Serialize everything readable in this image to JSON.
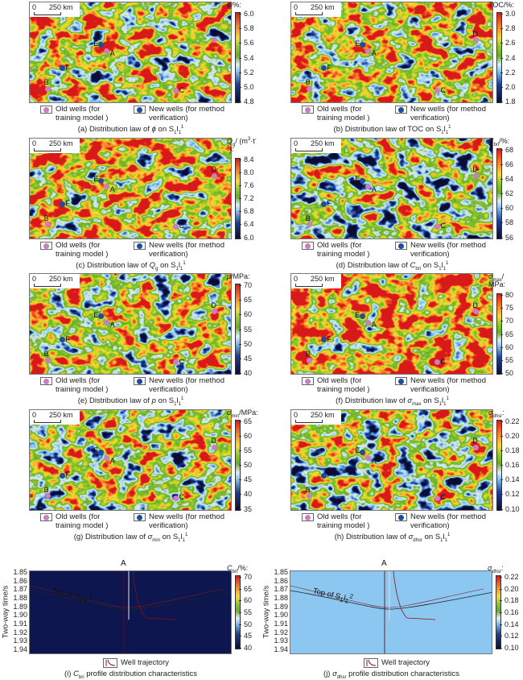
{
  "scale_bar": {
    "zero": "0",
    "distance": "250 km"
  },
  "legend": {
    "old_wells": [
      "Old wells (for",
      "training model )"
    ],
    "new_wells": [
      "New wells (for method",
      "verification)"
    ],
    "well_trajectory": "Well trajectory"
  },
  "colors": {
    "old_well": "#c77fbf",
    "new_well": "#1d4e9c"
  },
  "wells": [
    {
      "label": "A",
      "type": "old"
    },
    {
      "label": "B",
      "type": "old"
    },
    {
      "label": "C",
      "type": "old"
    },
    {
      "label": "D",
      "type": "old"
    },
    {
      "label": "E",
      "type": "new"
    },
    {
      "label": "F",
      "type": "new"
    }
  ],
  "map_panels": [
    {
      "cb_title": [
        {
          "t": "ϕ",
          "i": 1
        },
        {
          "t": "/%:"
        }
      ],
      "ticks": [
        "6.0",
        "5.8",
        "5.6",
        "5.4",
        "5.2",
        "5.0",
        "4.8"
      ],
      "caption": [
        {
          "t": "(a) Distribution law of "
        },
        {
          "t": "ϕ",
          "i": 1
        },
        {
          "t": " on S"
        },
        {
          "t": "1",
          "sub": 1
        },
        {
          "t": "l"
        },
        {
          "t": "1",
          "sub": 1
        },
        {
          "t": "1",
          "sup": 1
        }
      ]
    },
    {
      "cb_title": [
        {
          "t": "TOC/%:"
        }
      ],
      "ticks": [
        "3.0",
        "2.8",
        "2.6",
        "2.4",
        "2.2",
        "2.0",
        "1.8"
      ],
      "caption": [
        {
          "t": "(b) Distribution law of TOC on S"
        },
        {
          "t": "1",
          "sub": 1
        },
        {
          "t": "l"
        },
        {
          "t": "1",
          "sub": 1
        },
        {
          "t": "1",
          "sup": 1
        }
      ]
    },
    {
      "cb_title": [
        {
          "t": "Q",
          "i": 1
        },
        {
          "t": "g",
          "sub": 1
        },
        {
          "t": "/ (m"
        },
        {
          "t": "3",
          "sup": 1
        },
        {
          "t": "·t"
        },
        {
          "t": "-1",
          "sup": 1
        },
        {
          "t": "):"
        }
      ],
      "ticks": [
        "8.4",
        "8.0",
        "7.6",
        "7.2",
        "6.8",
        "6.4",
        "6.0"
      ],
      "caption": [
        {
          "t": "(c) Distribution law of "
        },
        {
          "t": "Q",
          "i": 1
        },
        {
          "t": "g",
          "sub": 1
        },
        {
          "t": " on S"
        },
        {
          "t": "1",
          "sub": 1
        },
        {
          "t": "l"
        },
        {
          "t": "1",
          "sub": 1
        },
        {
          "t": "1",
          "sup": 1
        }
      ]
    },
    {
      "cb_title": [
        {
          "t": "C",
          "i": 1
        },
        {
          "t": "bri",
          "sub": 1
        },
        {
          "t": "/%:"
        }
      ],
      "ticks": [
        "68",
        "66",
        "64",
        "62",
        "60",
        "58",
        "56"
      ],
      "caption": [
        {
          "t": "(d) Distribution law of "
        },
        {
          "t": "C",
          "i": 1
        },
        {
          "t": "bri",
          "sub": 1
        },
        {
          "t": " on S"
        },
        {
          "t": "1",
          "sub": 1
        },
        {
          "t": "l"
        },
        {
          "t": "1",
          "sub": 1
        },
        {
          "t": "1",
          "sup": 1
        }
      ]
    },
    {
      "cb_title": [
        {
          "t": "p",
          "i": 1
        },
        {
          "t": "/MPa:"
        }
      ],
      "ticks": [
        "70",
        "65",
        "60",
        "55",
        "50",
        "45",
        "40"
      ],
      "caption": [
        {
          "t": "(e) Distribution law of "
        },
        {
          "t": "p",
          "i": 1
        },
        {
          "t": " on S"
        },
        {
          "t": "1",
          "sub": 1
        },
        {
          "t": "l"
        },
        {
          "t": "1",
          "sub": 1
        },
        {
          "t": "1",
          "sup": 1
        }
      ]
    },
    {
      "cb_title": [
        {
          "t": "σ",
          "i": 1
        },
        {
          "t": "max",
          "sub": 1
        },
        {
          "t": "/ MPa:"
        }
      ],
      "ticks": [
        "80",
        "75",
        "70",
        "65",
        "60",
        "55",
        "50"
      ],
      "caption": [
        {
          "t": "(f) Distribution law of "
        },
        {
          "t": "σ",
          "i": 1
        },
        {
          "t": "max",
          "sub": 1
        },
        {
          "t": " on S"
        },
        {
          "t": "1",
          "sub": 1
        },
        {
          "t": "l"
        },
        {
          "t": "1",
          "sub": 1
        },
        {
          "t": "1",
          "sup": 1
        }
      ]
    },
    {
      "cb_title": [
        {
          "t": "σ",
          "i": 1
        },
        {
          "t": "min",
          "sub": 1
        },
        {
          "t": "/MPa:"
        }
      ],
      "ticks": [
        "65",
        "60",
        "55",
        "50",
        "45",
        "40",
        "35"
      ],
      "caption": [
        {
          "t": "(g) Distribution law of "
        },
        {
          "t": "σ",
          "i": 1
        },
        {
          "t": "min",
          "sub": 1
        },
        {
          "t": " on S"
        },
        {
          "t": "1",
          "sub": 1
        },
        {
          "t": "l"
        },
        {
          "t": "1",
          "sub": 1
        },
        {
          "t": "1",
          "sup": 1
        }
      ]
    },
    {
      "cb_title": [
        {
          "t": "σ",
          "i": 1
        },
        {
          "t": "dhsr",
          "sub": 1
        },
        {
          "t": ":"
        }
      ],
      "ticks": [
        "0.22",
        "0.20",
        "0.18",
        "0.16",
        "0.14",
        "0.12",
        "0.10"
      ],
      "caption": [
        {
          "t": "(h) Distribution law of "
        },
        {
          "t": "σ",
          "i": 1
        },
        {
          "t": "dhsr",
          "sub": 1
        },
        {
          "t": " on S"
        },
        {
          "t": "1",
          "sub": 1
        },
        {
          "t": "l"
        },
        {
          "t": "1",
          "sub": 1
        },
        {
          "t": "1",
          "sup": 1
        }
      ]
    }
  ],
  "profile_panels": [
    {
      "cb_title": [
        {
          "t": "C",
          "i": 1
        },
        {
          "t": "bri",
          "sub": 1
        },
        {
          "t": "/%:"
        }
      ],
      "ticks": [
        "70",
        "65",
        "60",
        "55",
        "50",
        "45",
        "40"
      ],
      "well": "A",
      "horizon": [
        {
          "t": "Top of S"
        },
        {
          "t": "1",
          "sub": 1
        },
        {
          "t": "l"
        },
        {
          "t": "1",
          "sub": 1
        },
        {
          "t": "2",
          "sup": 1
        }
      ],
      "caption": [
        {
          "t": "(i) "
        },
        {
          "t": "C",
          "i": 1
        },
        {
          "t": "bri",
          "sub": 1
        },
        {
          "t": " profile distribution characteristics"
        }
      ]
    },
    {
      "cb_title": [
        {
          "t": "σ",
          "i": 1
        },
        {
          "t": "dhsr",
          "sub": 1
        },
        {
          "t": ":"
        }
      ],
      "ticks": [
        "0.22",
        "0.20",
        "0.18",
        "0.16",
        "0.14",
        "0.12",
        "0.10"
      ],
      "well": "A",
      "horizon": [
        {
          "t": "Top of S"
        },
        {
          "t": "1",
          "sub": 1
        },
        {
          "t": "l"
        },
        {
          "t": "1",
          "sub": 1
        },
        {
          "t": "2",
          "sup": 1
        }
      ],
      "caption": [
        {
          "t": "(j) "
        },
        {
          "t": "σ",
          "i": 1
        },
        {
          "t": "dhsr",
          "sub": 1
        },
        {
          "t": " profile distribution characteristics"
        }
      ]
    }
  ],
  "profile_axis": {
    "ylabel": "Two-way time/s",
    "yticks": [
      "1.85",
      "1.86",
      "1.87",
      "1.88",
      "1.89",
      "1.90",
      "1.91",
      "1.92",
      "1.93",
      "1.94"
    ]
  }
}
